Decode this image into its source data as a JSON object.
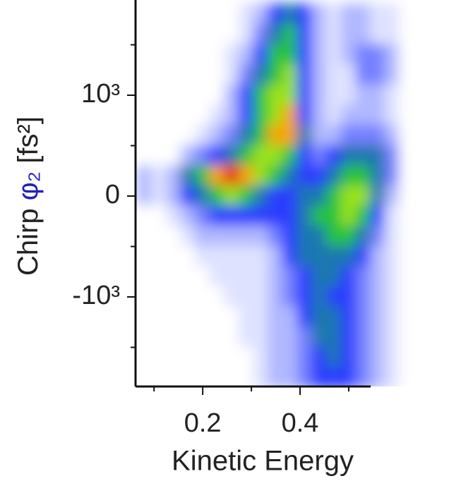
{
  "chart_data": {
    "type": "heatmap",
    "xlabel": "Kinetic Energy",
    "ylabel": {
      "main": "Chirp ",
      "symbol": "φ₂",
      "unit": " [fs²]",
      "symbol_color": "#2020c0"
    },
    "xlim": [
      0.062,
      0.706
    ],
    "ylim": [
      -1888,
      1944
    ],
    "xticks": [
      0.2,
      0.4
    ],
    "xminor": [
      0.1,
      0.3,
      0.5
    ],
    "yticks": [
      {
        "value": 1000,
        "label": "10³"
      },
      0,
      {
        "value": -1000,
        "label": "-10³"
      }
    ],
    "yminor": [
      1500,
      500,
      -500,
      -1500
    ],
    "colors": [
      "#ffffff",
      "#dfe2ff",
      "#b0b8ff",
      "#7480ff",
      "#2a3cff",
      "#1d78b0",
      "#25c23c",
      "#9ae21c",
      "#f7a400",
      "#e62200"
    ],
    "x": [
      0.08,
      0.11,
      0.14,
      0.17,
      0.2,
      0.23,
      0.26,
      0.29,
      0.32,
      0.35,
      0.38,
      0.41,
      0.44,
      0.47,
      0.5,
      0.53,
      0.56,
      0.59,
      0.62
    ],
    "y": [
      1800,
      1600,
      1400,
      1200,
      1000,
      800,
      600,
      400,
      200,
      0,
      -200,
      -400,
      -600,
      -800,
      -1000,
      -1200,
      -1400,
      -1600,
      -1800
    ],
    "z": [
      [
        0,
        0,
        0,
        0,
        0,
        0,
        0,
        1,
        2,
        4,
        5,
        4,
        2,
        1,
        2,
        2,
        1,
        1,
        0
      ],
      [
        0,
        0,
        0,
        0,
        0,
        0,
        0,
        1,
        3,
        5,
        6,
        4,
        2,
        1,
        2,
        2,
        1,
        1,
        0
      ],
      [
        0,
        0,
        0,
        0,
        0,
        0,
        1,
        2,
        4,
        6,
        6,
        4,
        2,
        1,
        2,
        3,
        3,
        2,
        0
      ],
      [
        0,
        0,
        0,
        0,
        0,
        0,
        1,
        3,
        5,
        6,
        7,
        4,
        2,
        1,
        1,
        3,
        3,
        2,
        0
      ],
      [
        0,
        0,
        0,
        0,
        0,
        0,
        2,
        4,
        6,
        7,
        7,
        4,
        2,
        1,
        1,
        2,
        2,
        1,
        0
      ],
      [
        0,
        0,
        0,
        0,
        0,
        1,
        2,
        4,
        6,
        7,
        8,
        4,
        2,
        1,
        2,
        2,
        2,
        1,
        0
      ],
      [
        0,
        0,
        0,
        0,
        1,
        2,
        3,
        5,
        6,
        8,
        8,
        5,
        2,
        2,
        3,
        3,
        3,
        2,
        0
      ],
      [
        0,
        0,
        0,
        2,
        3,
        4,
        5,
        6,
        7,
        7,
        6,
        4,
        3,
        4,
        5,
        5,
        5,
        3,
        0
      ],
      [
        2,
        1,
        2,
        5,
        6,
        8,
        9,
        8,
        7,
        6,
        5,
        4,
        4,
        5,
        6,
        6,
        5,
        3,
        0
      ],
      [
        2,
        1,
        2,
        4,
        5,
        6,
        7,
        6,
        5,
        4,
        4,
        5,
        5,
        6,
        7,
        7,
        5,
        2,
        0
      ],
      [
        0,
        0,
        1,
        2,
        3,
        4,
        4,
        4,
        4,
        4,
        4,
        5,
        6,
        6,
        7,
        6,
        4,
        1,
        0
      ],
      [
        0,
        0,
        0,
        1,
        2,
        2,
        2,
        2,
        2,
        3,
        4,
        5,
        5,
        6,
        6,
        5,
        3,
        1,
        0
      ],
      [
        0,
        0,
        0,
        0,
        1,
        1,
        1,
        1,
        1,
        2,
        4,
        5,
        5,
        5,
        5,
        4,
        2,
        1,
        0
      ],
      [
        0,
        0,
        0,
        0,
        0,
        1,
        1,
        1,
        1,
        2,
        3,
        4,
        5,
        5,
        4,
        3,
        2,
        1,
        0
      ],
      [
        0,
        0,
        0,
        0,
        0,
        0,
        1,
        1,
        1,
        2,
        3,
        4,
        5,
        4,
        4,
        3,
        2,
        1,
        0
      ],
      [
        0,
        0,
        0,
        0,
        0,
        0,
        0,
        1,
        1,
        2,
        2,
        4,
        5,
        5,
        4,
        3,
        2,
        1,
        0
      ],
      [
        0,
        0,
        0,
        0,
        0,
        0,
        0,
        1,
        1,
        2,
        2,
        3,
        5,
        5,
        4,
        3,
        2,
        1,
        0
      ],
      [
        0,
        0,
        0,
        0,
        0,
        0,
        0,
        0,
        1,
        2,
        2,
        3,
        4,
        5,
        4,
        3,
        2,
        1,
        0
      ],
      [
        0,
        0,
        0,
        0,
        0,
        0,
        0,
        0,
        1,
        2,
        2,
        3,
        4,
        4,
        4,
        3,
        2,
        1,
        0
      ]
    ]
  }
}
